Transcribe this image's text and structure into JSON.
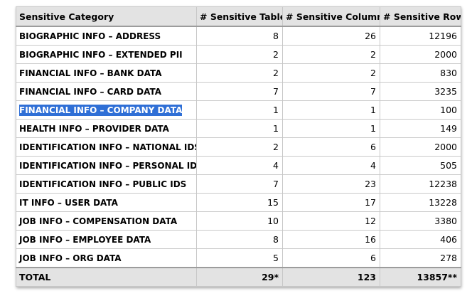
{
  "table": {
    "headers": [
      "Sensitive Category",
      "# Sensitive Tables",
      "# Sensitive Columns",
      "# Sensitive Rows"
    ],
    "rows": [
      {
        "category": "BIOGRAPHIC INFO – ADDRESS",
        "tables": "8",
        "columns": "26",
        "rows": "12196"
      },
      {
        "category": "BIOGRAPHIC INFO – EXTENDED PII",
        "tables": "2",
        "columns": "2",
        "rows": "2000"
      },
      {
        "category": "FINANCIAL INFO – BANK DATA",
        "tables": "2",
        "columns": "2",
        "rows": "830"
      },
      {
        "category": "FINANCIAL INFO – CARD DATA",
        "tables": "7",
        "columns": "7",
        "rows": "3235"
      },
      {
        "category": "FINANCIAL INFO – COMPANY DATA",
        "tables": "1",
        "columns": "1",
        "rows": "100",
        "selected": true
      },
      {
        "category": "HEALTH INFO – PROVIDER DATA",
        "tables": "1",
        "columns": "1",
        "rows": "149"
      },
      {
        "category": "IDENTIFICATION INFO – NATIONAL IDS",
        "tables": "2",
        "columns": "6",
        "rows": "2000"
      },
      {
        "category": "IDENTIFICATION INFO – PERSONAL IDS",
        "tables": "4",
        "columns": "4",
        "rows": "505"
      },
      {
        "category": "IDENTIFICATION INFO – PUBLIC IDS",
        "tables": "7",
        "columns": "23",
        "rows": "12238"
      },
      {
        "category": "IT INFO – USER DATA",
        "tables": "15",
        "columns": "17",
        "rows": "13228"
      },
      {
        "category": "JOB INFO – COMPENSATION DATA",
        "tables": "10",
        "columns": "12",
        "rows": "3380"
      },
      {
        "category": "JOB INFO – EMPLOYEE DATA",
        "tables": "8",
        "columns": "16",
        "rows": "406"
      },
      {
        "category": "JOB INFO – ORG DATA",
        "tables": "5",
        "columns": "6",
        "rows": "278"
      }
    ],
    "total": {
      "label": "TOTAL",
      "tables": "29*",
      "columns": "123",
      "rows": "13857**"
    }
  },
  "colors": {
    "header_bg": "#e3e3e3",
    "selection_bg": "#2f6fd6",
    "selection_text": "#ffffff",
    "border": "#c8c8c8"
  }
}
